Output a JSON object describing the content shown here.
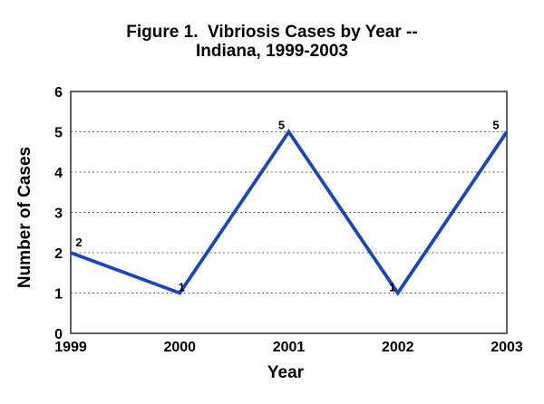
{
  "chart_data": {
    "type": "line",
    "title": "Figure 1. Vibriosis Cases by Year -- Indiana, 1999-2003",
    "title_line1": "Figure 1.  Vibriosis Cases by Year --",
    "title_line2": "Indiana, 1999-2003",
    "xlabel": "Year",
    "ylabel": "Number of Cases",
    "categories": [
      "1999",
      "2000",
      "2001",
      "2002",
      "2003"
    ],
    "series": [
      {
        "name": "Vibriosis cases",
        "values": [
          2,
          1,
          5,
          1,
          5
        ]
      }
    ],
    "point_labels": [
      "2",
      "1",
      "5",
      "1",
      "5"
    ],
    "ylim": [
      0,
      6
    ],
    "yticks": [
      0,
      1,
      2,
      3,
      4,
      5,
      6
    ],
    "grid": "horizontal-dotted",
    "legend": "none",
    "colors": {
      "line": "#1747BB",
      "axis_border": "#3A3A3A",
      "gridline": "#555555",
      "text": "#000000",
      "background": "#FFFFFF"
    }
  }
}
